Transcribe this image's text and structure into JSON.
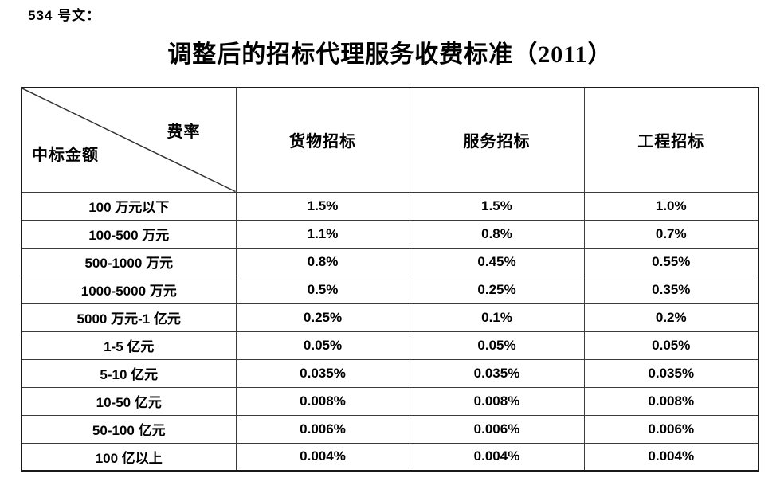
{
  "page": {
    "doc_ref": "534 号文：",
    "title": "调整后的招标代理服务收费标准（2011）"
  },
  "table": {
    "corner": {
      "top_right": "费率",
      "bottom_left": "中标金额"
    },
    "columns": [
      "货物招标",
      "服务招标",
      "工程招标"
    ],
    "rows": [
      {
        "amount": "100 万元以下",
        "goods": "1.5%",
        "service": "1.5%",
        "engineering": "1.0%"
      },
      {
        "amount": "100-500 万元",
        "goods": "1.1%",
        "service": "0.8%",
        "engineering": "0.7%"
      },
      {
        "amount": "500-1000 万元",
        "goods": "0.8%",
        "service": "0.45%",
        "engineering": "0.55%"
      },
      {
        "amount": "1000-5000 万元",
        "goods": "0.5%",
        "service": "0.25%",
        "engineering": "0.35%"
      },
      {
        "amount": "5000 万元-1 亿元",
        "goods": "0.25%",
        "service": "0.1%",
        "engineering": "0.2%"
      },
      {
        "amount": "1-5 亿元",
        "goods": "0.05%",
        "service": "0.05%",
        "engineering": "0.05%"
      },
      {
        "amount": "5-10 亿元",
        "goods": "0.035%",
        "service": "0.035%",
        "engineering": "0.035%"
      },
      {
        "amount": "10-50 亿元",
        "goods": "0.008%",
        "service": "0.008%",
        "engineering": "0.008%"
      },
      {
        "amount": "50-100 亿元",
        "goods": "0.006%",
        "service": "0.006%",
        "engineering": "0.006%"
      },
      {
        "amount": "100 亿以上",
        "goods": "0.004%",
        "service": "0.004%",
        "engineering": "0.004%"
      }
    ]
  },
  "colors": {
    "text": "#000000",
    "background": "#ffffff",
    "border_outer": "#1a1a1a",
    "border_inner": "#3c3c3c",
    "diagonal_line": "#333333"
  }
}
